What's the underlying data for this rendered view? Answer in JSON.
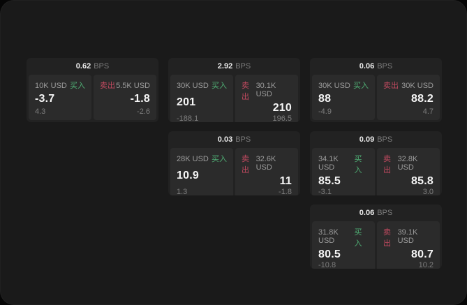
{
  "labels": {
    "bps_unit": "BPS",
    "buy": "买入",
    "sell": "卖出"
  },
  "colors": {
    "buy_accent": "#4fae74",
    "sell_accent": "#c24a60",
    "panel_bg": "#1a1a1a",
    "card_bg": "#222222",
    "tile_bg": "#2b2b2b"
  },
  "cards": [
    {
      "bps": "0.62",
      "buy": {
        "amount": "10K USD",
        "price": "-3.7",
        "delta": "4.3"
      },
      "sell": {
        "amount": "5.5K USD",
        "price": "-1.8",
        "delta": "-2.6"
      }
    },
    {
      "bps": "2.92",
      "buy": {
        "amount": "30K USD",
        "price": "201",
        "delta": "-188.1"
      },
      "sell": {
        "amount": "30.1K USD",
        "price": "210",
        "delta": "196.5"
      }
    },
    {
      "bps": "0.06",
      "buy": {
        "amount": "30K USD",
        "price": "88",
        "delta": "-4.9"
      },
      "sell": {
        "amount": "30K USD",
        "price": "88.2",
        "delta": "4.7"
      }
    },
    {
      "bps": "0.03",
      "buy": {
        "amount": "28K USD",
        "price": "10.9",
        "delta": "1.3"
      },
      "sell": {
        "amount": "32.6K USD",
        "price": "11",
        "delta": "-1.8"
      }
    },
    {
      "bps": "0.09",
      "buy": {
        "amount": "34.1K USD",
        "price": "85.5",
        "delta": "-3.1"
      },
      "sell": {
        "amount": "32.8K USD",
        "price": "85.8",
        "delta": "3.0"
      }
    },
    {
      "bps": "0.06",
      "buy": {
        "amount": "31.8K USD",
        "price": "80.5",
        "delta": "-10.8"
      },
      "sell": {
        "amount": "39.1K USD",
        "price": "80.7",
        "delta": "10.2"
      }
    }
  ]
}
